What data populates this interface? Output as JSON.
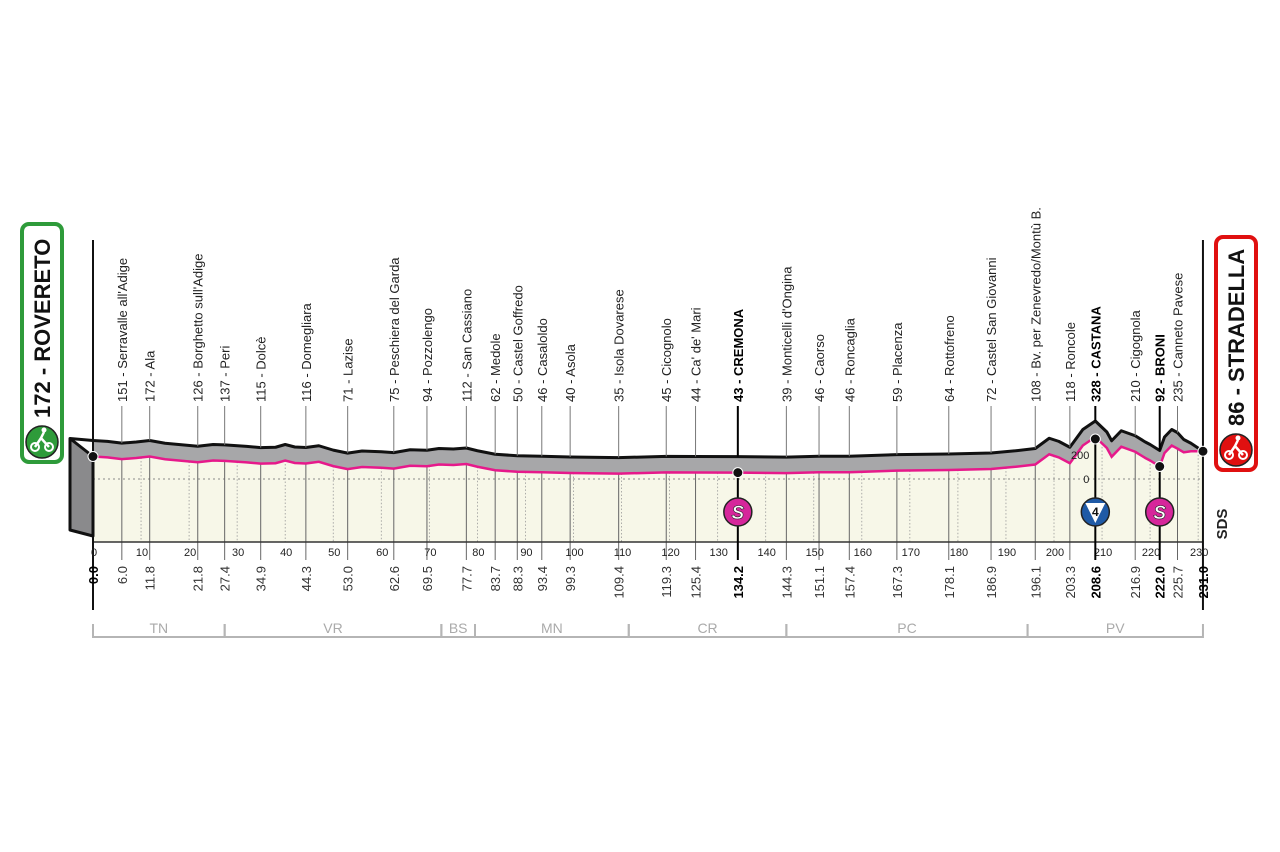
{
  "chart_data": {
    "type": "area",
    "xlabel": "",
    "ylabel": "",
    "xlim": [
      0,
      231
    ],
    "x_ticks": [
      0,
      10,
      20,
      30,
      40,
      50,
      60,
      70,
      80,
      90,
      100,
      110,
      120,
      130,
      140,
      150,
      160,
      170,
      180,
      190,
      200,
      210,
      220,
      230
    ],
    "altitude_scale_labels": [
      "200",
      "0"
    ],
    "colors": {
      "profile_top": "#a7a7a9",
      "profile_line": "#111111",
      "baseline": "#e6198b",
      "floor": "#f7f7e8",
      "start": "#2e9b3a",
      "finish": "#e01010",
      "sprint": "#d6269b",
      "kom": "#1f5aa6"
    },
    "start": {
      "name": "ROVERETO",
      "altitude": 172,
      "km": "0.0",
      "label": "172 - ROVERETO"
    },
    "finish": {
      "name": "STRADELLA",
      "altitude": 86,
      "km": "231.0",
      "label": "86 - STRADELLA"
    },
    "waypoints": [
      {
        "km": 6.0,
        "km_label": "6.0",
        "alt": 151,
        "label": "151 - Serravalle all'Adige"
      },
      {
        "km": 11.8,
        "km_label": "11.8",
        "alt": 172,
        "label": "172 - Ala"
      },
      {
        "km": 21.8,
        "km_label": "21.8",
        "alt": 126,
        "label": "126 - Borghetto sull'Adige"
      },
      {
        "km": 27.4,
        "km_label": "27.4",
        "alt": 137,
        "label": "137 - Peri"
      },
      {
        "km": 34.9,
        "km_label": "34.9",
        "alt": 115,
        "label": "115 - Dolcè"
      },
      {
        "km": 44.3,
        "km_label": "44.3",
        "alt": 116,
        "label": "116 - Domegliara"
      },
      {
        "km": 53.0,
        "km_label": "53.0",
        "alt": 71,
        "label": "71 - Lazise"
      },
      {
        "km": 62.6,
        "km_label": "62.6",
        "alt": 75,
        "label": "75 - Peschiera del Garda"
      },
      {
        "km": 69.5,
        "km_label": "69.5",
        "alt": 94,
        "label": "94 - Pozzolengo"
      },
      {
        "km": 77.7,
        "km_label": "77.7",
        "alt": 112,
        "label": "112 - San Cassiano"
      },
      {
        "km": 83.7,
        "km_label": "83.7",
        "alt": 62,
        "label": "62 - Medole"
      },
      {
        "km": 88.3,
        "km_label": "88.3",
        "alt": 50,
        "label": "50 - Castel Goffredo"
      },
      {
        "km": 93.4,
        "km_label": "93.4",
        "alt": 46,
        "label": "46 - Casaloldo"
      },
      {
        "km": 99.3,
        "km_label": "99.3",
        "alt": 40,
        "label": "40 - Asola"
      },
      {
        "km": 109.4,
        "km_label": "109.4",
        "alt": 35,
        "label": "35 - Isola Dovarese"
      },
      {
        "km": 119.3,
        "km_label": "119.3",
        "alt": 45,
        "label": "45 - Cicognolo"
      },
      {
        "km": 125.4,
        "km_label": "125.4",
        "alt": 44,
        "label": "44 - Ca' de' Mari"
      },
      {
        "km": 134.2,
        "km_label": "134.2",
        "alt": 43,
        "label": "43 - CREMONA",
        "bold": true,
        "marker": "sprint"
      },
      {
        "km": 144.3,
        "km_label": "144.3",
        "alt": 39,
        "label": "39 - Monticelli d'Ongina"
      },
      {
        "km": 151.1,
        "km_label": "151.1",
        "alt": 46,
        "label": "46 - Caorso"
      },
      {
        "km": 157.4,
        "km_label": "157.4",
        "alt": 46,
        "label": "46 - Roncaglia"
      },
      {
        "km": 167.3,
        "km_label": "167.3",
        "alt": 59,
        "label": "59 - Placenza"
      },
      {
        "km": 178.1,
        "km_label": "178.1",
        "alt": 64,
        "label": "64 - Rottofreno"
      },
      {
        "km": 186.9,
        "km_label": "186.9",
        "alt": 72,
        "label": "72 - Castel San Giovanni"
      },
      {
        "km": 196.1,
        "km_label": "196.1",
        "alt": 108,
        "label": "108 - Bv. per Zenevredo/Montù B."
      },
      {
        "km": 203.3,
        "km_label": "203.3",
        "alt": 118,
        "label": "118 - Roncole"
      },
      {
        "km": 208.6,
        "km_label": "208.6",
        "alt": 328,
        "label": "328 - CASTANA",
        "bold": true,
        "marker": "kom",
        "kom_category": "4"
      },
      {
        "km": 216.9,
        "km_label": "216.9",
        "alt": 210,
        "label": "210 - Cigognola"
      },
      {
        "km": 222.0,
        "km_label": "222.0",
        "alt": 92,
        "label": "92 - BRONI",
        "bold": true,
        "marker": "sprint"
      },
      {
        "km": 225.7,
        "km_label": "225.7",
        "alt": 235,
        "label": "235 - Canneto Pavese"
      }
    ],
    "profile": [
      [
        0,
        172
      ],
      [
        3,
        165
      ],
      [
        6,
        151
      ],
      [
        9,
        160
      ],
      [
        11.8,
        172
      ],
      [
        15,
        150
      ],
      [
        21.8,
        126
      ],
      [
        25,
        140
      ],
      [
        27.4,
        137
      ],
      [
        32,
        125
      ],
      [
        34.9,
        115
      ],
      [
        38,
        118
      ],
      [
        40,
        140
      ],
      [
        42,
        120
      ],
      [
        44.3,
        116
      ],
      [
        47,
        130
      ],
      [
        50,
        95
      ],
      [
        53,
        71
      ],
      [
        56,
        88
      ],
      [
        60,
        82
      ],
      [
        62.6,
        75
      ],
      [
        66,
        98
      ],
      [
        69.5,
        94
      ],
      [
        72,
        108
      ],
      [
        75,
        104
      ],
      [
        77.7,
        112
      ],
      [
        80,
        90
      ],
      [
        83.7,
        62
      ],
      [
        88.3,
        50
      ],
      [
        93.4,
        46
      ],
      [
        99.3,
        40
      ],
      [
        109.4,
        35
      ],
      [
        119.3,
        45
      ],
      [
        125.4,
        44
      ],
      [
        134.2,
        43
      ],
      [
        144.3,
        39
      ],
      [
        151.1,
        46
      ],
      [
        157.4,
        46
      ],
      [
        167.3,
        59
      ],
      [
        178.1,
        64
      ],
      [
        186.9,
        72
      ],
      [
        192,
        90
      ],
      [
        196.1,
        108
      ],
      [
        199,
        190
      ],
      [
        201,
        165
      ],
      [
        203.3,
        118
      ],
      [
        206,
        260
      ],
      [
        208.6,
        328
      ],
      [
        211,
        240
      ],
      [
        212,
        170
      ],
      [
        214,
        250
      ],
      [
        216.9,
        210
      ],
      [
        219,
        160
      ],
      [
        220,
        140
      ],
      [
        222,
        92
      ],
      [
        223,
        200
      ],
      [
        224.5,
        260
      ],
      [
        225.7,
        235
      ],
      [
        227,
        180
      ],
      [
        228.5,
        150
      ],
      [
        231,
        86
      ]
    ],
    "regions": [
      {
        "code": "TN",
        "from": 0,
        "to": 27.4
      },
      {
        "code": "VR",
        "from": 27.4,
        "to": 72.5
      },
      {
        "code": "BS",
        "from": 72.5,
        "to": 79.5
      },
      {
        "code": "MN",
        "from": 79.5,
        "to": 111.5
      },
      {
        "code": "CR",
        "from": 111.5,
        "to": 144.3
      },
      {
        "code": "PC",
        "from": 144.3,
        "to": 194.5
      },
      {
        "code": "PV",
        "from": 194.5,
        "to": 231
      }
    ],
    "sprint_symbol": "S",
    "brand_mark": "SDS"
  }
}
